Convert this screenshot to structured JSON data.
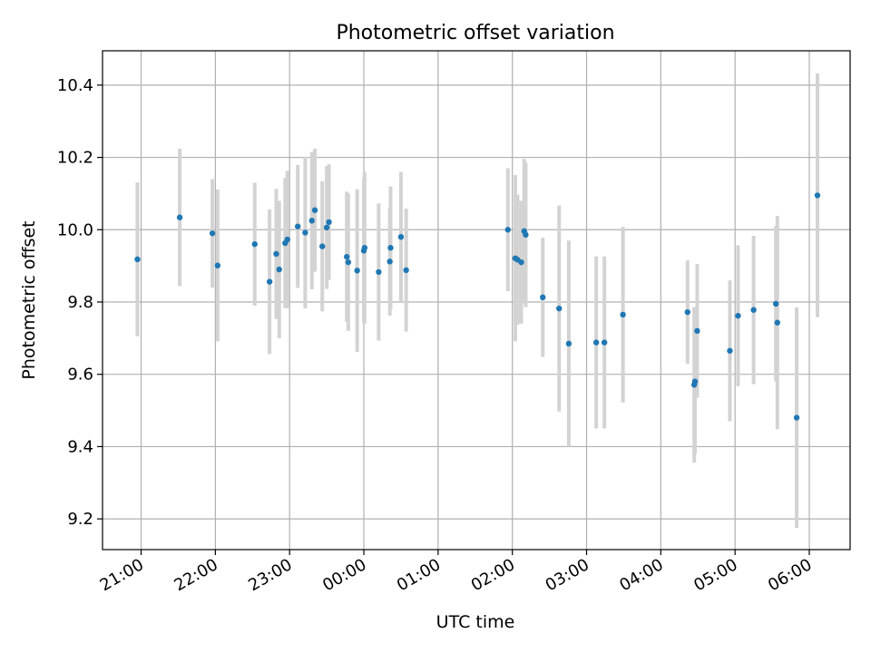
{
  "chart_data": {
    "type": "scatter",
    "title": "Photometric offset variation",
    "xlabel": "UTC time",
    "ylabel": "Photometric offset",
    "ylim": [
      9.115,
      10.495
    ],
    "xlim_hours": [
      -3.52,
      6.55
    ],
    "grid": true,
    "x_unit": "hours relative to 00:00 UTC (negative = previous day)",
    "x_ticks": [
      {
        "value": -3,
        "label": "21:00"
      },
      {
        "value": -2,
        "label": "22:00"
      },
      {
        "value": -1,
        "label": "23:00"
      },
      {
        "value": 0,
        "label": "00:00"
      },
      {
        "value": 1,
        "label": "01:00"
      },
      {
        "value": 2,
        "label": "02:00"
      },
      {
        "value": 3,
        "label": "03:00"
      },
      {
        "value": 4,
        "label": "04:00"
      },
      {
        "value": 5,
        "label": "05:00"
      },
      {
        "value": 6,
        "label": "06:00"
      }
    ],
    "y_ticks": [
      {
        "value": 9.2,
        "label": "9.2"
      },
      {
        "value": 9.4,
        "label": "9.4"
      },
      {
        "value": 9.6,
        "label": "9.6"
      },
      {
        "value": 9.8,
        "label": "9.8"
      },
      {
        "value": 10.0,
        "label": "10.0"
      },
      {
        "value": 10.2,
        "label": "10.2"
      },
      {
        "value": 10.4,
        "label": "10.4"
      }
    ],
    "colors": {
      "point": "#1f77b4",
      "errorbar": "#d3d3d3",
      "grid": "#b0b0b0"
    },
    "points": [
      {
        "t": -3.05,
        "y": 9.918,
        "err": 0.213
      },
      {
        "t": -2.48,
        "y": 10.034,
        "err": 0.19
      },
      {
        "t": -2.04,
        "y": 9.99,
        "err": 0.15
      },
      {
        "t": -1.97,
        "y": 9.901,
        "err": 0.21
      },
      {
        "t": -1.47,
        "y": 9.96,
        "err": 0.17
      },
      {
        "t": -1.27,
        "y": 9.856,
        "err": 0.2
      },
      {
        "t": -1.18,
        "y": 9.933,
        "err": 0.18
      },
      {
        "t": -1.14,
        "y": 9.89,
        "err": 0.19
      },
      {
        "t": -1.06,
        "y": 9.963,
        "err": 0.18
      },
      {
        "t": -1.03,
        "y": 9.973,
        "err": 0.19
      },
      {
        "t": -0.89,
        "y": 10.009,
        "err": 0.17
      },
      {
        "t": -0.79,
        "y": 9.992,
        "err": 0.21
      },
      {
        "t": -0.7,
        "y": 10.025,
        "err": 0.19
      },
      {
        "t": -0.66,
        "y": 10.054,
        "err": 0.17
      },
      {
        "t": -0.56,
        "y": 9.954,
        "err": 0.18
      },
      {
        "t": -0.5,
        "y": 10.006,
        "err": 0.17
      },
      {
        "t": -0.47,
        "y": 10.021,
        "err": 0.16
      },
      {
        "t": -0.23,
        "y": 9.925,
        "err": 0.18
      },
      {
        "t": -0.21,
        "y": 9.91,
        "err": 0.19
      },
      {
        "t": -0.09,
        "y": 9.887,
        "err": 0.225
      },
      {
        "t": 0.0,
        "y": 9.942,
        "err": 0.2
      },
      {
        "t": 0.01,
        "y": 9.95,
        "err": 0.21
      },
      {
        "t": 0.2,
        "y": 9.883,
        "err": 0.19
      },
      {
        "t": 0.35,
        "y": 9.912,
        "err": 0.15
      },
      {
        "t": 0.36,
        "y": 9.95,
        "err": 0.17
      },
      {
        "t": 0.5,
        "y": 9.98,
        "err": 0.18
      },
      {
        "t": 0.57,
        "y": 9.888,
        "err": 0.17
      },
      {
        "t": 1.94,
        "y": 10.0,
        "err": 0.17
      },
      {
        "t": 2.04,
        "y": 9.921,
        "err": 0.23
      },
      {
        "t": 2.07,
        "y": 9.917,
        "err": 0.18
      },
      {
        "t": 2.12,
        "y": 9.91,
        "err": 0.17
      },
      {
        "t": 2.16,
        "y": 9.996,
        "err": 0.2
      },
      {
        "t": 2.18,
        "y": 9.986,
        "err": 0.2
      },
      {
        "t": 2.41,
        "y": 9.813,
        "err": 0.165
      },
      {
        "t": 2.63,
        "y": 9.782,
        "err": 0.285
      },
      {
        "t": 2.76,
        "y": 9.685,
        "err": 0.285
      },
      {
        "t": 3.13,
        "y": 9.688,
        "err": 0.238
      },
      {
        "t": 3.24,
        "y": 9.688,
        "err": 0.238
      },
      {
        "t": 3.49,
        "y": 9.765,
        "err": 0.243
      },
      {
        "t": 4.36,
        "y": 9.772,
        "err": 0.143
      },
      {
        "t": 4.45,
        "y": 9.571,
        "err": 0.215
      },
      {
        "t": 4.46,
        "y": 9.58,
        "err": 0.2
      },
      {
        "t": 4.49,
        "y": 9.72,
        "err": 0.185
      },
      {
        "t": 4.93,
        "y": 9.665,
        "err": 0.195
      },
      {
        "t": 5.04,
        "y": 9.762,
        "err": 0.195
      },
      {
        "t": 5.25,
        "y": 9.778,
        "err": 0.205
      },
      {
        "t": 5.55,
        "y": 9.795,
        "err": 0.215
      },
      {
        "t": 5.57,
        "y": 9.743,
        "err": 0.295
      },
      {
        "t": 5.83,
        "y": 9.48,
        "err": 0.305
      },
      {
        "t": 6.11,
        "y": 10.095,
        "err": 0.337
      }
    ]
  }
}
